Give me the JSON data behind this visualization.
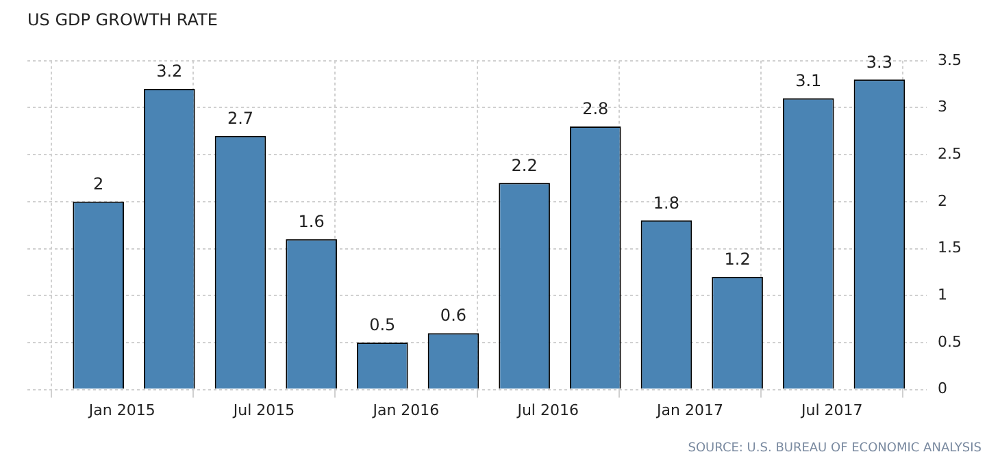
{
  "chart_data": {
    "type": "bar",
    "title": "US GDP GROWTH RATE",
    "x": [
      "2014-12",
      "2015-03",
      "2015-06",
      "2015-09",
      "2015-12",
      "2016-03",
      "2016-06",
      "2016-09",
      "2016-12",
      "2017-03",
      "2017-06",
      "2017-09"
    ],
    "values": [
      2,
      3.2,
      2.7,
      1.6,
      0.5,
      0.6,
      2.2,
      2.8,
      1.8,
      1.2,
      3.1,
      3.3
    ],
    "color": "#4a84b4",
    "data_labels": true,
    "xlim": [
      "2014-09",
      "2017-11"
    ],
    "xticks": [
      {
        "value": "2015-01",
        "label": "Jan 2015"
      },
      {
        "value": "2015-07",
        "label": "Jul 2015"
      },
      {
        "value": "2016-01",
        "label": "Jan 2016"
      },
      {
        "value": "2016-07",
        "label": "Jul 2016"
      },
      {
        "value": "2017-01",
        "label": "Jan 2017"
      },
      {
        "value": "2017-07",
        "label": "Jul 2017"
      }
    ],
    "ylim": [
      0,
      3.5
    ],
    "yticks": [
      0,
      0.5,
      1,
      1.5,
      2,
      2.5,
      3,
      3.5
    ],
    "grid": true,
    "legend": false,
    "annotations": [
      "SOURCE: U.S. BUREAU OF ECONOMIC ANALYSIS"
    ]
  }
}
